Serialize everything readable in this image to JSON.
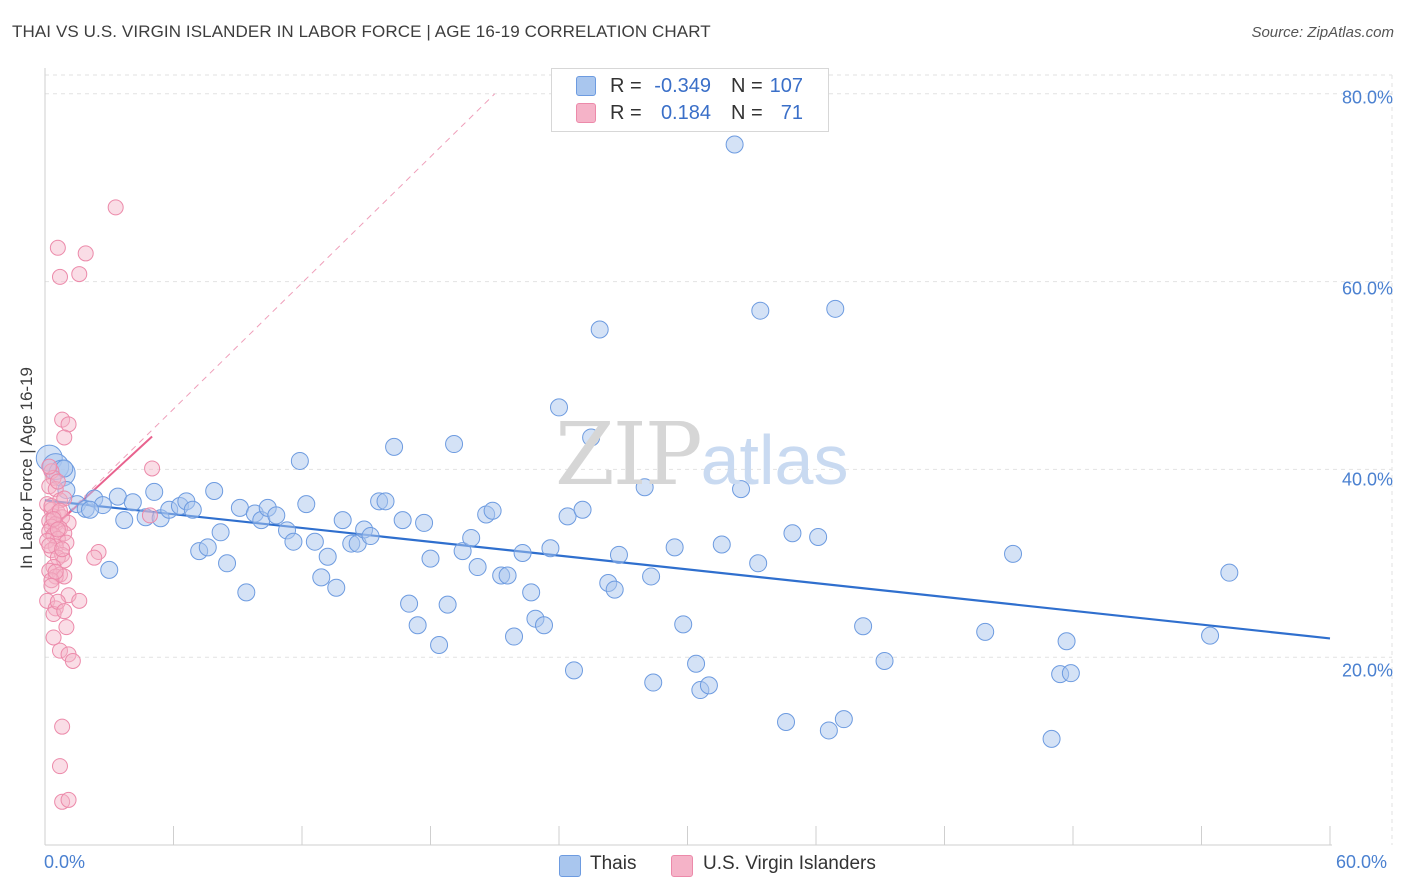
{
  "title": "THAI VS U.S. VIRGIN ISLANDER IN LABOR FORCE | AGE 16-19 CORRELATION CHART",
  "source": "Source: ZipAtlas.com",
  "watermark": {
    "zip": "ZIP",
    "atlas": "atlas"
  },
  "legend": {
    "rows": [
      {
        "r_label": "R =",
        "r_value": "-0.349",
        "n_label": "N =",
        "n_value": "107"
      },
      {
        "r_label": "R =",
        "r_value": "0.184",
        "n_label": "N =",
        "n_value": "71"
      }
    ]
  },
  "colors": {
    "thais_fill": "#a9c6ee",
    "thais_stroke": "#6d9be0",
    "thais_line": "#2f6fce",
    "usvi_fill": "#f5b3c8",
    "usvi_stroke": "#ec8aaa",
    "usvi_line": "#e8628e",
    "grid": "#e2e2e2",
    "axis_text": "#4a80d0"
  },
  "chart_data": {
    "type": "scatter",
    "title": "THAI VS U.S. VIRGIN ISLANDER IN LABOR FORCE | AGE 16-19 CORRELATION CHART",
    "ylabel": "In Labor Force | Age 16-19",
    "xlabel": "",
    "xlim": [
      0,
      60
    ],
    "ylim": [
      0,
      82
    ],
    "x_tick_labels": [
      "0.0%",
      "60.0%"
    ],
    "y_ticks": [
      20,
      40,
      60,
      80
    ],
    "y_tick_labels": [
      "20.0%",
      "40.0%",
      "60.0%",
      "80.0%"
    ],
    "grid": true,
    "legend_position": "bottom",
    "series": [
      {
        "name": "Thais",
        "r": -0.349,
        "n": 107,
        "trend": {
          "x0": 0,
          "y0": 36.7,
          "x1": 60,
          "y1": 22.0
        },
        "points": [
          [
            0.2,
            41.2
          ],
          [
            0.5,
            40.3
          ],
          [
            0.8,
            39.6
          ],
          [
            0.9,
            40.1
          ],
          [
            1.0,
            37.8
          ],
          [
            1.5,
            36.3
          ],
          [
            1.9,
            35.8
          ],
          [
            2.3,
            36.9
          ],
          [
            2.7,
            36.2
          ],
          [
            3.0,
            29.3
          ],
          [
            3.4,
            37.1
          ],
          [
            3.7,
            34.6
          ],
          [
            4.1,
            36.5
          ],
          [
            4.7,
            34.9
          ],
          [
            5.1,
            37.6
          ],
          [
            5.4,
            34.8
          ],
          [
            5.8,
            35.7
          ],
          [
            6.3,
            36.1
          ],
          [
            6.6,
            36.6
          ],
          [
            6.9,
            35.7
          ],
          [
            7.2,
            31.3
          ],
          [
            7.6,
            31.7
          ],
          [
            7.9,
            37.7
          ],
          [
            8.2,
            33.3
          ],
          [
            8.5,
            30.0
          ],
          [
            9.1,
            35.9
          ],
          [
            9.4,
            26.9
          ],
          [
            9.8,
            35.3
          ],
          [
            10.1,
            34.6
          ],
          [
            10.4,
            35.9
          ],
          [
            10.8,
            35.1
          ],
          [
            11.3,
            33.5
          ],
          [
            11.6,
            32.3
          ],
          [
            11.9,
            40.9
          ],
          [
            12.2,
            36.3
          ],
          [
            12.6,
            32.3
          ],
          [
            12.9,
            28.5
          ],
          [
            13.2,
            30.7
          ],
          [
            13.6,
            27.4
          ],
          [
            13.9,
            34.6
          ],
          [
            14.3,
            32.1
          ],
          [
            14.6,
            32.1
          ],
          [
            14.9,
            33.6
          ],
          [
            15.2,
            32.9
          ],
          [
            15.6,
            36.6
          ],
          [
            15.9,
            36.6
          ],
          [
            16.3,
            42.4
          ],
          [
            16.7,
            34.6
          ],
          [
            17.0,
            25.7
          ],
          [
            17.4,
            23.4
          ],
          [
            17.7,
            34.3
          ],
          [
            18.0,
            30.5
          ],
          [
            18.4,
            21.3
          ],
          [
            18.8,
            25.6
          ],
          [
            19.1,
            42.7
          ],
          [
            19.5,
            31.3
          ],
          [
            19.9,
            32.7
          ],
          [
            20.2,
            29.6
          ],
          [
            20.6,
            35.2
          ],
          [
            20.9,
            35.6
          ],
          [
            21.3,
            28.7
          ],
          [
            21.6,
            28.7
          ],
          [
            21.9,
            22.2
          ],
          [
            22.3,
            31.1
          ],
          [
            22.7,
            26.9
          ],
          [
            22.9,
            24.1
          ],
          [
            23.3,
            23.4
          ],
          [
            23.6,
            31.6
          ],
          [
            24.0,
            46.6
          ],
          [
            24.4,
            35.0
          ],
          [
            24.7,
            18.6
          ],
          [
            25.1,
            35.7
          ],
          [
            25.5,
            43.4
          ],
          [
            25.9,
            54.9
          ],
          [
            26.3,
            27.9
          ],
          [
            26.6,
            27.2
          ],
          [
            26.8,
            30.9
          ],
          [
            28.0,
            38.1
          ],
          [
            28.3,
            28.6
          ],
          [
            28.4,
            17.3
          ],
          [
            29.4,
            31.7
          ],
          [
            29.8,
            23.5
          ],
          [
            30.4,
            19.3
          ],
          [
            30.6,
            16.5
          ],
          [
            31.0,
            17.0
          ],
          [
            31.6,
            32.0
          ],
          [
            32.2,
            74.6
          ],
          [
            32.5,
            37.9
          ],
          [
            33.3,
            30.0
          ],
          [
            33.4,
            56.9
          ],
          [
            34.6,
            13.1
          ],
          [
            34.9,
            33.2
          ],
          [
            36.1,
            32.8
          ],
          [
            36.6,
            12.2
          ],
          [
            36.9,
            57.1
          ],
          [
            37.3,
            13.4
          ],
          [
            38.2,
            23.3
          ],
          [
            39.2,
            19.6
          ],
          [
            43.9,
            22.7
          ],
          [
            45.2,
            31.0
          ],
          [
            47.0,
            11.3
          ],
          [
            47.4,
            18.2
          ],
          [
            47.7,
            21.7
          ],
          [
            47.9,
            18.3
          ],
          [
            54.4,
            22.3
          ],
          [
            55.3,
            29.0
          ],
          [
            2.1,
            35.7
          ]
        ]
      },
      {
        "name": "U.S. Virgin Islanders",
        "r": 0.184,
        "n": 71,
        "trend": {
          "x0": 0,
          "y0": 33.0,
          "x1": 5.0,
          "y1": 43.5
        },
        "trend_extended": {
          "x0": 0,
          "y0": 33.0,
          "x1": 21.0,
          "y1": 80.0
        },
        "points": [
          [
            3.3,
            67.9
          ],
          [
            0.6,
            63.6
          ],
          [
            1.9,
            63.0
          ],
          [
            0.7,
            60.5
          ],
          [
            1.6,
            60.8
          ],
          [
            0.8,
            45.3
          ],
          [
            1.1,
            44.8
          ],
          [
            0.9,
            43.4
          ],
          [
            0.3,
            39.8
          ],
          [
            0.4,
            39.1
          ],
          [
            0.2,
            38.2
          ],
          [
            0.5,
            37.9
          ],
          [
            0.7,
            36.7
          ],
          [
            0.1,
            36.3
          ],
          [
            0.3,
            35.7
          ],
          [
            0.6,
            35.4
          ],
          [
            0.4,
            35.0
          ],
          [
            0.8,
            34.9
          ],
          [
            0.2,
            34.5
          ],
          [
            1.1,
            34.3
          ],
          [
            0.5,
            34.2
          ],
          [
            0.3,
            33.9
          ],
          [
            0.7,
            33.7
          ],
          [
            0.2,
            33.4
          ],
          [
            0.9,
            33.2
          ],
          [
            0.4,
            33.0
          ],
          [
            0.6,
            32.6
          ],
          [
            0.1,
            32.4
          ],
          [
            1.0,
            32.2
          ],
          [
            0.5,
            31.8
          ],
          [
            0.3,
            31.4
          ],
          [
            2.5,
            31.2
          ],
          [
            0.8,
            30.9
          ],
          [
            0.6,
            30.6
          ],
          [
            0.9,
            30.3
          ],
          [
            2.3,
            30.6
          ],
          [
            0.4,
            29.6
          ],
          [
            0.2,
            29.2
          ],
          [
            0.7,
            28.8
          ],
          [
            0.5,
            28.6
          ],
          [
            0.9,
            28.6
          ],
          [
            0.3,
            28.2
          ],
          [
            1.1,
            26.6
          ],
          [
            1.6,
            26.0
          ],
          [
            0.1,
            26.0
          ],
          [
            0.5,
            25.2
          ],
          [
            0.4,
            24.6
          ],
          [
            1.0,
            23.2
          ],
          [
            0.7,
            20.7
          ],
          [
            1.1,
            20.3
          ],
          [
            1.3,
            19.6
          ],
          [
            0.8,
            12.6
          ],
          [
            0.7,
            8.4
          ],
          [
            0.8,
            4.6
          ],
          [
            1.1,
            4.8
          ],
          [
            5.0,
            40.1
          ],
          [
            4.9,
            35.1
          ],
          [
            0.2,
            40.3
          ],
          [
            0.6,
            38.7
          ],
          [
            0.9,
            36.9
          ],
          [
            0.3,
            36.1
          ],
          [
            0.7,
            35.6
          ],
          [
            0.4,
            34.7
          ],
          [
            0.6,
            33.6
          ],
          [
            0.2,
            31.9
          ],
          [
            0.8,
            31.5
          ],
          [
            0.5,
            29.1
          ],
          [
            0.3,
            27.6
          ],
          [
            0.6,
            25.9
          ],
          [
            0.9,
            24.9
          ],
          [
            0.4,
            22.1
          ]
        ]
      }
    ]
  }
}
